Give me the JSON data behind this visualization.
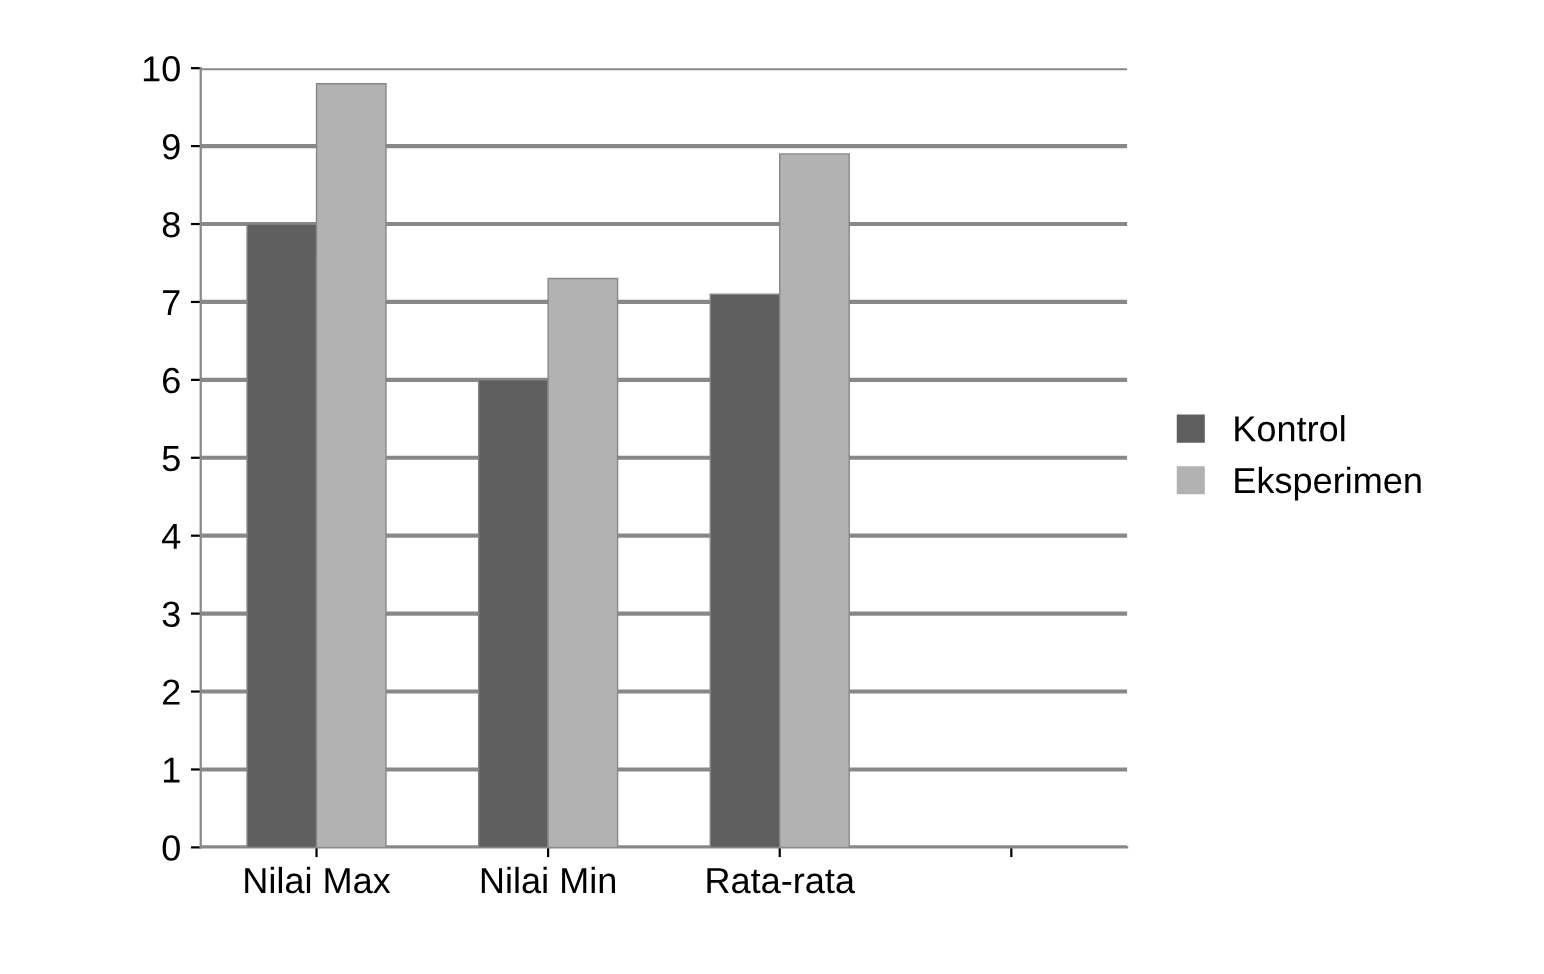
{
  "chart_data": {
    "type": "bar",
    "categories": [
      "Nilai Max",
      "Nilai Min",
      "Rata-rata",
      null
    ],
    "series": [
      {
        "name": "Kontrol",
        "color": "#5f5f5f",
        "values": [
          8,
          6,
          7.1,
          null
        ]
      },
      {
        "name": "Eksperimen",
        "color": "#b2b2b2",
        "values": [
          9.8,
          7.3,
          8.9,
          null
        ]
      }
    ],
    "ylim": [
      0,
      10
    ],
    "yticks": [
      0,
      1,
      2,
      3,
      4,
      5,
      6,
      7,
      8,
      9,
      10
    ],
    "grid": "y",
    "legend": "right"
  }
}
